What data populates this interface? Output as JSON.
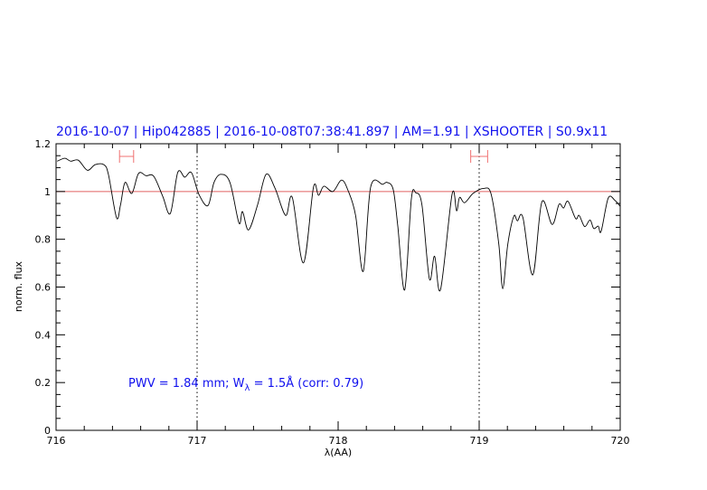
{
  "chart_data": {
    "type": "line",
    "title": "2016-10-07 | Hip042885 | 2016-10-08T07:38:41.897 | AM=1.91 | XSHOOTER | S0.9x11",
    "xlabel": "λ(AA)",
    "ylabel": "norm. flux",
    "xlim": [
      716,
      720
    ],
    "ylim": [
      0,
      1.2
    ],
    "xticks": [
      "716",
      "717",
      "718",
      "719",
      "720"
    ],
    "yticks": [
      "0",
      "0.2",
      "0.4",
      "0.6",
      "0.8",
      "1",
      "1.2"
    ],
    "xtick_values": [
      716,
      717,
      718,
      719,
      720
    ],
    "ytick_values": [
      0,
      0.2,
      0.4,
      0.6,
      0.8,
      1.0,
      1.2
    ],
    "reference_line": 1.0,
    "reference_color": "#e06060",
    "vertical_markers": [
      717,
      719
    ],
    "ranges": [
      [
        716.45,
        716.55
      ],
      [
        718.94,
        719.06
      ]
    ],
    "range_color": "#f07070",
    "annotation": {
      "prefix": "PWV  =  1.84  mm;  W",
      "sub": "λ",
      "suffix": "  =  1.5Å  (corr: 0.79)"
    },
    "title_color": "#1010ee",
    "series": [
      {
        "color": "#000000",
        "x": [
          716.008,
          716.062,
          716.104,
          716.158,
          716.222,
          716.276,
          716.34,
          716.372,
          716.429,
          716.457,
          716.489,
          716.537,
          716.585,
          716.639,
          716.692,
          716.756,
          716.81,
          716.863,
          716.912,
          716.96,
          717.013,
          717.077,
          717.12,
          717.169,
          717.233,
          717.297,
          717.322,
          717.365,
          717.429,
          717.489,
          717.553,
          717.628,
          717.675,
          717.754,
          717.825,
          717.861,
          717.899,
          717.963,
          718.024,
          718.071,
          718.124,
          718.178,
          718.231,
          718.316,
          718.348,
          718.391,
          718.423,
          718.472,
          718.519,
          718.551,
          718.594,
          718.647,
          718.684,
          718.726,
          718.808,
          718.84,
          718.861,
          718.897,
          718.957,
          719.032,
          719.085,
          719.139,
          719.167,
          719.203,
          719.246,
          719.271,
          719.31,
          719.38,
          719.444,
          719.517,
          719.566,
          719.598,
          719.63,
          719.684,
          719.709,
          719.748,
          719.786,
          719.812,
          719.844,
          719.865,
          719.915,
          719.962,
          720.0
        ],
        "y": [
          1.127,
          1.139,
          1.127,
          1.131,
          1.089,
          1.112,
          1.112,
          1.07,
          0.89,
          0.944,
          1.038,
          0.992,
          1.076,
          1.066,
          1.064,
          0.981,
          0.908,
          1.08,
          1.06,
          1.079,
          0.988,
          0.941,
          1.038,
          1.072,
          1.038,
          0.868,
          0.916,
          0.839,
          0.944,
          1.072,
          1.013,
          0.9,
          0.975,
          0.701,
          1.017,
          0.984,
          1.022,
          1.0,
          1.048,
          1.003,
          0.9,
          0.666,
          1.019,
          1.03,
          1.038,
          1.007,
          0.855,
          0.588,
          0.969,
          0.994,
          0.944,
          0.635,
          0.729,
          0.59,
          0.988,
          0.919,
          0.975,
          0.953,
          0.992,
          1.013,
          0.988,
          0.78,
          0.593,
          0.78,
          0.897,
          0.877,
          0.891,
          0.651,
          0.956,
          0.862,
          0.946,
          0.931,
          0.959,
          0.887,
          0.9,
          0.853,
          0.881,
          0.845,
          0.855,
          0.833,
          0.972,
          0.963,
          0.938
        ]
      }
    ]
  }
}
